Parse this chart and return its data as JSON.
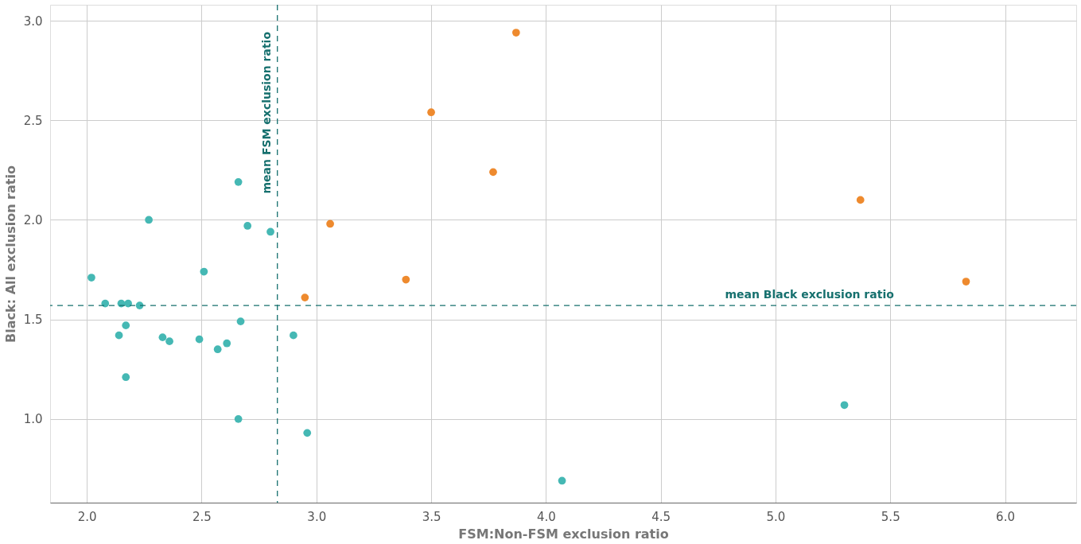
{
  "chart_data": {
    "type": "scatter",
    "xlabel": "FSM:Non-FSM exclusion ratio",
    "ylabel": "Black: All exclusion ratio",
    "xlim": [
      1.84,
      6.31
    ],
    "ylim": [
      0.58,
      3.08
    ],
    "xticks": [
      {
        "value": 2,
        "label": "2.0"
      },
      2.5,
      {
        "value": 3,
        "label": "3.0"
      },
      3.5,
      {
        "value": 4,
        "label": "4.0"
      },
      4.5,
      {
        "value": 5,
        "label": "5.0"
      },
      5.5,
      {
        "value": 6,
        "label": "6.0"
      }
    ],
    "yticks": [
      {
        "value": 1,
        "label": "1.0"
      },
      1.5,
      {
        "value": 2,
        "label": "2.0"
      },
      2.5,
      {
        "value": 3,
        "label": "3.0"
      }
    ],
    "grid": true,
    "legend": false,
    "marker": "circle",
    "series": [
      {
        "color": "#45b8b4",
        "x": [
          2.02,
          2.08,
          2.15,
          2.18,
          2.23,
          2.14,
          2.17,
          2.17,
          2.27,
          2.33,
          2.36,
          2.49,
          2.51,
          2.57,
          2.61,
          2.66,
          2.7,
          2.8,
          2.67,
          2.66,
          2.9,
          2.96,
          4.07,
          5.3
        ],
        "values": [
          1.71,
          1.58,
          1.58,
          1.58,
          1.57,
          1.42,
          1.47,
          1.21,
          2.0,
          1.41,
          1.39,
          1.4,
          1.74,
          1.35,
          1.38,
          2.19,
          1.97,
          1.94,
          1.49,
          1.0,
          1.42,
          0.93,
          0.69,
          1.07
        ]
      },
      {
        "color": "#ee8a2e",
        "x": [
          2.95,
          3.06,
          3.39,
          3.5,
          3.77,
          3.87,
          5.37,
          5.83
        ],
        "values": [
          1.61,
          1.98,
          1.7,
          2.54,
          2.24,
          2.94,
          2.1,
          1.69
        ]
      }
    ],
    "ref_lines": [
      {
        "axis": "x",
        "value": 2.83,
        "label": "mean FSM exclusion ratio",
        "color": "#16706e",
        "line_style": "dashed"
      },
      {
        "axis": "y",
        "value": 1.57,
        "label": "mean Black exclusion ratio",
        "color": "#16706e",
        "line_style": "dashed"
      }
    ]
  }
}
